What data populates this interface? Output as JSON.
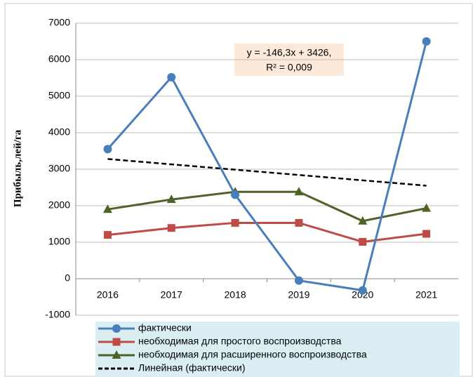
{
  "chart_data": {
    "type": "line",
    "y_label": "Прибыль,лей/га",
    "categories": [
      "2016",
      "2017",
      "2018",
      "2019",
      "2020",
      "2021"
    ],
    "series": [
      {
        "name": "фактически",
        "color": "#4a7ebb",
        "marker": "circle",
        "style": "solid",
        "values": [
          3550,
          5520,
          2300,
          -50,
          -320,
          6500
        ]
      },
      {
        "name": "необходимая для простого воспроизводства",
        "color": "#be4b48",
        "marker": "square",
        "style": "solid",
        "values": [
          1200,
          1390,
          1530,
          1530,
          1010,
          1230
        ]
      },
      {
        "name": "необходимая для расширенного воспроизводства",
        "color": "#4f6228",
        "marker": "triangle",
        "style": "solid",
        "values": [
          1900,
          2170,
          2380,
          2380,
          1580,
          1930
        ]
      },
      {
        "name": "Линейная (фактически)",
        "color": "#000000",
        "marker": null,
        "style": "dashed",
        "values": [
          3280,
          3133,
          2987,
          2841,
          2695,
          2548
        ]
      }
    ],
    "annotation": [
      "y = -146,3x + 3426,",
      "R² = 0,009"
    ],
    "ylim": [
      -1000,
      7000
    ],
    "yticks": [
      -1000,
      0,
      1000,
      2000,
      3000,
      4000,
      5000,
      6000,
      7000
    ],
    "grid": true,
    "legend": "bottom"
  }
}
